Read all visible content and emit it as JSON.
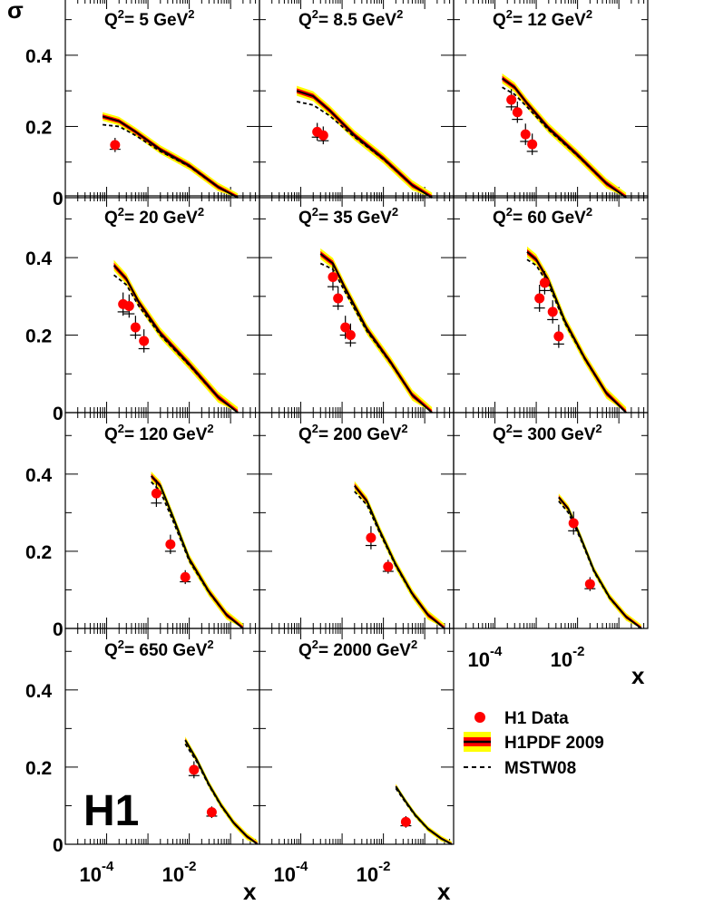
{
  "chart_data": {
    "type": "scatter",
    "figure_logo": "H1",
    "y_axis": {
      "label": "σ̃",
      "ticks": [
        "0",
        "0.2",
        "0.4"
      ],
      "ylim": [
        0,
        0.55
      ]
    },
    "x_axis": {
      "label": "x",
      "scale": "log",
      "xlim": [
        1e-05,
        0.5
      ],
      "major_ticks": [
        {
          "base": "10",
          "exp": "-4",
          "value": 0.0001
        },
        {
          "base": "10",
          "exp": "-2",
          "value": 0.01
        }
      ]
    },
    "legend": {
      "placement": "bottom-right",
      "entries": [
        {
          "label": "H1 Data",
          "marker": "red-circle"
        },
        {
          "label": "H1PDF 2009",
          "marker": "band"
        },
        {
          "label": "MSTW08",
          "marker": "dashed-line"
        }
      ]
    },
    "colors": {
      "data": "#ff0000",
      "band_outer": "#ffff00",
      "band_inner": "#ff0000",
      "central": "#000000",
      "mstw": "#000000"
    },
    "panels": [
      {
        "id": "q5",
        "q2_prefix": "Q",
        "q2_sup": "2",
        "q2_value": "= 5 GeV",
        "q2_unit_sup": "2",
        "x": [
          0.00016
        ],
        "y": [
          0.148
        ],
        "err_stat": [
          0.012
        ],
        "err_tot": [
          0.02
        ],
        "theory_x": [
          8e-05,
          0.0002,
          0.0005,
          0.002,
          0.01,
          0.05,
          0.15
        ],
        "theory_y": [
          0.228,
          0.215,
          0.185,
          0.135,
          0.09,
          0.03,
          0.0
        ],
        "mstw_y": [
          0.205,
          0.2,
          0.175,
          0.13,
          0.088,
          0.03,
          0.0
        ],
        "band_w": 0.012
      },
      {
        "id": "q8_5",
        "q2_prefix": "Q",
        "q2_sup": "2",
        "q2_value": "= 8.5 GeV",
        "q2_unit_sup": "2",
        "x": [
          0.00025,
          0.00035
        ],
        "y": [
          0.185,
          0.175
        ],
        "err_stat": [
          0.015,
          0.015
        ],
        "err_tot": [
          0.025,
          0.025
        ],
        "theory_x": [
          8e-05,
          0.0002,
          0.0005,
          0.002,
          0.01,
          0.05,
          0.15
        ],
        "theory_y": [
          0.3,
          0.285,
          0.245,
          0.175,
          0.11,
          0.035,
          0.0
        ],
        "mstw_y": [
          0.27,
          0.26,
          0.23,
          0.17,
          0.108,
          0.035,
          0.0
        ],
        "band_w": 0.014
      },
      {
        "id": "q12",
        "q2_prefix": "Q",
        "q2_sup": "2",
        "q2_value": "= 12 GeV",
        "q2_unit_sup": "2",
        "x": [
          0.00025,
          0.00035,
          0.00055,
          0.0008
        ],
        "y": [
          0.275,
          0.24,
          0.178,
          0.15
        ],
        "err_stat": [
          0.02,
          0.02,
          0.02,
          0.02
        ],
        "err_tot": [
          0.03,
          0.03,
          0.03,
          0.03
        ],
        "theory_x": [
          0.00015,
          0.0003,
          0.0006,
          0.002,
          0.01,
          0.05,
          0.15
        ],
        "theory_y": [
          0.335,
          0.31,
          0.265,
          0.195,
          0.12,
          0.04,
          0.0
        ],
        "mstw_y": [
          0.31,
          0.29,
          0.255,
          0.19,
          0.118,
          0.04,
          0.0
        ],
        "band_w": 0.014
      },
      {
        "id": "q20",
        "q2_prefix": "Q",
        "q2_sup": "2",
        "q2_value": "= 20 GeV",
        "q2_unit_sup": "2",
        "x": [
          0.00025,
          0.00035,
          0.0005,
          0.0008
        ],
        "y": [
          0.28,
          0.275,
          0.22,
          0.185
        ],
        "err_stat": [
          0.02,
          0.02,
          0.02,
          0.02
        ],
        "err_tot": [
          0.03,
          0.03,
          0.03,
          0.03
        ],
        "theory_x": [
          0.00015,
          0.0003,
          0.0006,
          0.002,
          0.01,
          0.05,
          0.15
        ],
        "theory_y": [
          0.38,
          0.345,
          0.285,
          0.205,
          0.125,
          0.04,
          0.0
        ],
        "mstw_y": [
          0.355,
          0.33,
          0.275,
          0.2,
          0.122,
          0.04,
          0.0
        ],
        "band_w": 0.014
      },
      {
        "id": "q35",
        "q2_prefix": "Q",
        "q2_sup": "2",
        "q2_value": "= 35 GeV",
        "q2_unit_sup": "2",
        "x": [
          0.0006,
          0.0008,
          0.0012,
          0.0016
        ],
        "y": [
          0.35,
          0.295,
          0.22,
          0.2
        ],
        "err_stat": [
          0.025,
          0.02,
          0.02,
          0.02
        ],
        "err_tot": [
          0.035,
          0.03,
          0.03,
          0.03
        ],
        "theory_x": [
          0.0003,
          0.0006,
          0.0012,
          0.004,
          0.015,
          0.05,
          0.15
        ],
        "theory_y": [
          0.41,
          0.385,
          0.32,
          0.215,
          0.13,
          0.045,
          0.0
        ],
        "mstw_y": [
          0.385,
          0.37,
          0.31,
          0.21,
          0.128,
          0.045,
          0.0
        ],
        "band_w": 0.014
      },
      {
        "id": "q60",
        "q2_prefix": "Q",
        "q2_sup": "2",
        "q2_value": "= 60 GeV",
        "q2_unit_sup": "2",
        "x": [
          0.0012,
          0.0016,
          0.0025,
          0.0035
        ],
        "y": [
          0.295,
          0.335,
          0.26,
          0.197
        ],
        "err_stat": [
          0.025,
          0.02,
          0.02,
          0.02
        ],
        "err_tot": [
          0.035,
          0.03,
          0.03,
          0.03
        ],
        "theory_x": [
          0.0006,
          0.001,
          0.002,
          0.005,
          0.015,
          0.05,
          0.15
        ],
        "theory_y": [
          0.415,
          0.395,
          0.34,
          0.235,
          0.14,
          0.05,
          0.0
        ],
        "mstw_y": [
          0.395,
          0.38,
          0.33,
          0.23,
          0.138,
          0.05,
          0.0
        ],
        "band_w": 0.014
      },
      {
        "id": "q120",
        "q2_prefix": "Q",
        "q2_sup": "2",
        "q2_value": "= 120 GeV",
        "q2_unit_sup": "2",
        "x": [
          0.0016,
          0.0035,
          0.008
        ],
        "y": [
          0.35,
          0.218,
          0.133
        ],
        "err_stat": [
          0.025,
          0.018,
          0.012
        ],
        "err_tot": [
          0.035,
          0.025,
          0.018
        ],
        "theory_x": [
          0.0012,
          0.002,
          0.004,
          0.01,
          0.03,
          0.08,
          0.2
        ],
        "theory_y": [
          0.395,
          0.37,
          0.29,
          0.18,
          0.095,
          0.035,
          0.0
        ],
        "mstw_y": [
          0.38,
          0.355,
          0.28,
          0.175,
          0.093,
          0.035,
          0.0
        ],
        "band_w": 0.012
      },
      {
        "id": "q200",
        "q2_prefix": "Q",
        "q2_sup": "2",
        "q2_value": "= 200 GeV",
        "q2_unit_sup": "2",
        "x": [
          0.005,
          0.013
        ],
        "y": [
          0.235,
          0.16
        ],
        "err_stat": [
          0.02,
          0.012
        ],
        "err_tot": [
          0.03,
          0.018
        ],
        "theory_x": [
          0.002,
          0.004,
          0.008,
          0.02,
          0.05,
          0.12,
          0.3
        ],
        "theory_y": [
          0.37,
          0.33,
          0.255,
          0.165,
          0.09,
          0.035,
          0.0
        ],
        "mstw_y": [
          0.355,
          0.32,
          0.25,
          0.162,
          0.088,
          0.035,
          0.0
        ],
        "band_w": 0.012
      },
      {
        "id": "q300",
        "q2_prefix": "Q",
        "q2_sup": "2",
        "q2_value": "= 300 GeV",
        "q2_unit_sup": "2",
        "x": [
          0.008,
          0.02
        ],
        "y": [
          0.273,
          0.115
        ],
        "err_stat": [
          0.02,
          0.012
        ],
        "err_tot": [
          0.03,
          0.018
        ],
        "theory_x": [
          0.0035,
          0.006,
          0.012,
          0.025,
          0.06,
          0.15,
          0.35
        ],
        "theory_y": [
          0.34,
          0.31,
          0.235,
          0.15,
          0.08,
          0.03,
          0.0
        ],
        "mstw_y": [
          0.33,
          0.3,
          0.23,
          0.147,
          0.078,
          0.03,
          0.0
        ],
        "band_w": 0.01
      },
      {
        "id": "q650",
        "q2_prefix": "Q",
        "q2_sup": "2",
        "q2_value": "= 650 GeV",
        "q2_unit_sup": "2",
        "x": [
          0.013,
          0.035
        ],
        "y": [
          0.193,
          0.083
        ],
        "err_stat": [
          0.015,
          0.01
        ],
        "err_tot": [
          0.022,
          0.015
        ],
        "theory_x": [
          0.008,
          0.015,
          0.03,
          0.06,
          0.12,
          0.25,
          0.45
        ],
        "theory_y": [
          0.27,
          0.22,
          0.155,
          0.1,
          0.055,
          0.02,
          0.0
        ],
        "mstw_y": [
          0.26,
          0.215,
          0.152,
          0.098,
          0.054,
          0.02,
          0.0
        ],
        "band_w": 0.009
      },
      {
        "id": "q2000",
        "q2_prefix": "Q",
        "q2_sup": "2",
        "q2_value": "= 2000 GeV",
        "q2_unit_sup": "2",
        "x": [
          0.035
        ],
        "y": [
          0.058
        ],
        "err_stat": [
          0.01
        ],
        "err_tot": [
          0.015
        ],
        "theory_x": [
          0.02,
          0.035,
          0.06,
          0.12,
          0.25,
          0.45
        ],
        "theory_y": [
          0.15,
          0.11,
          0.075,
          0.04,
          0.015,
          0.0
        ],
        "mstw_y": [
          0.145,
          0.107,
          0.073,
          0.039,
          0.015,
          0.0
        ],
        "band_w": 0.007
      }
    ]
  }
}
